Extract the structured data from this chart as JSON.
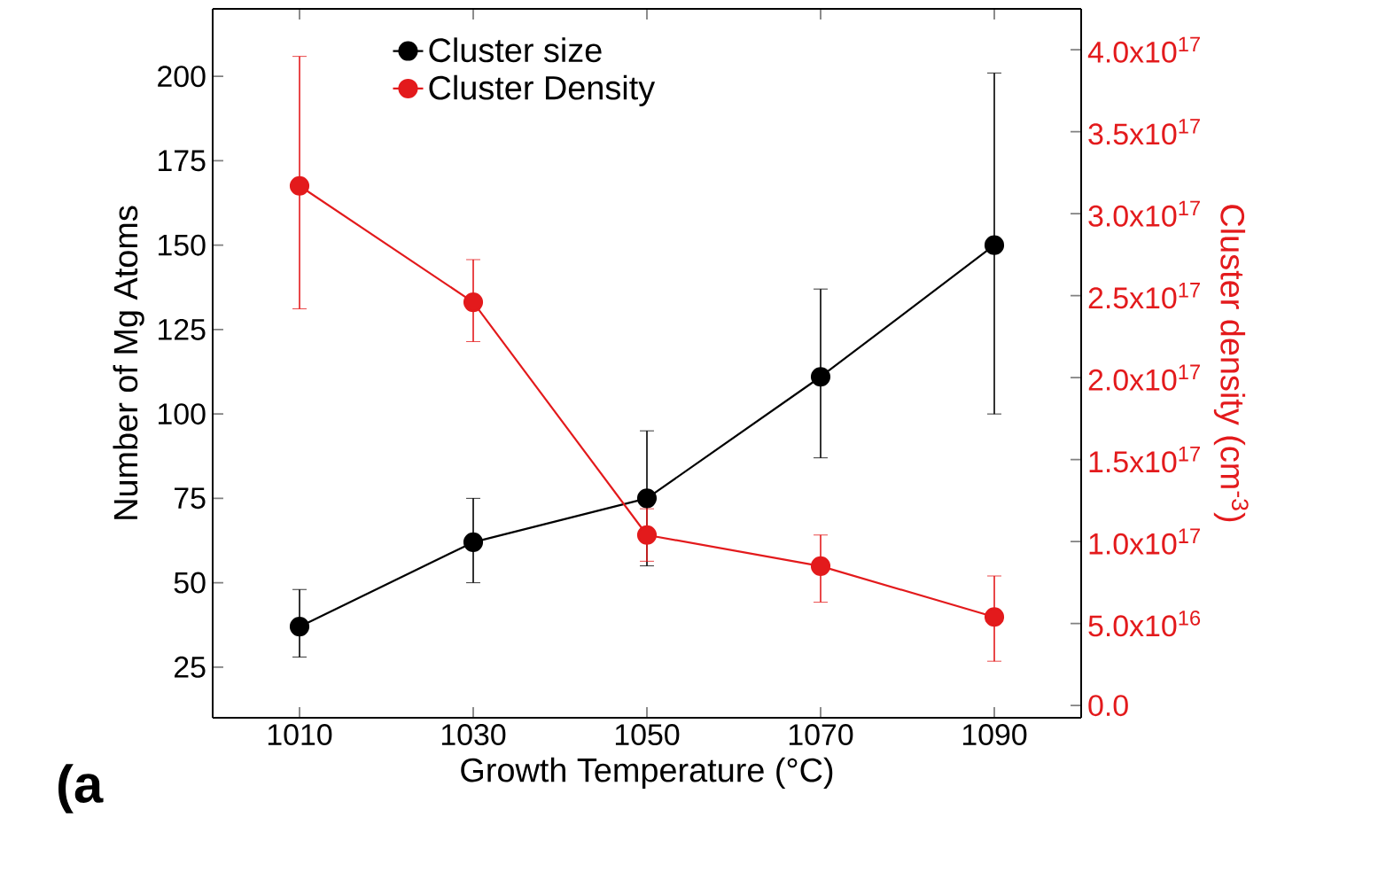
{
  "chart_data": {
    "type": "line",
    "xlabel": "Growth Temperature (°C)",
    "ylabel": "Number of Mg Atoms",
    "y2label": "Cluster density (cm$^{-3}$)",
    "annotations": [
      "(a"
    ],
    "x": [
      1010,
      1030,
      1050,
      1070,
      1090
    ],
    "series": [
      {
        "name": "Cluster size",
        "color": "#000000",
        "values": [
          37,
          62,
          75,
          111,
          150
        ],
        "errors": [
          [
            28,
            48
          ],
          [
            50,
            75
          ],
          [
            55,
            95
          ],
          [
            87,
            137
          ],
          [
            100,
            201
          ]
        ]
      },
      {
        "name": "Cluster Density",
        "color": "#e31a1c",
        "axis": "y2",
        "values": [
          3.17e+17,
          2.46e+17,
          1.04e+17,
          8.5e+16,
          5.4e+16
        ],
        "errors": [
          [
            2.42e+17,
            3.96e+17
          ],
          [
            2.22e+17,
            2.72e+17
          ],
          [
            8.8e+16,
            1.2e+17
          ],
          [
            6.3e+16,
            1.04e+17
          ],
          [
            2.7e+16,
            7.9e+16
          ]
        ]
      }
    ],
    "xlim": [
      1000,
      1100
    ],
    "xticks": [
      1010,
      1030,
      1050,
      1070,
      1090
    ],
    "ylim": [
      10,
      220
    ],
    "yticks": [
      25,
      50,
      75,
      100,
      125,
      150,
      175,
      200
    ],
    "y2lim": [
      -7500000000000000.0,
      4.25e+17
    ],
    "y2ticks": [
      {
        "value": 0,
        "label": "0.0"
      },
      {
        "value": 5e+16,
        "label": "5.0x10$^{16}$"
      },
      {
        "value": 1e+17,
        "label": "1.0x10$^{17}$"
      },
      {
        "value": 1.5e+17,
        "label": "1.5x10$^{17}$"
      },
      {
        "value": 2e+17,
        "label": "2.0x10$^{17}$"
      },
      {
        "value": 2.5e+17,
        "label": "2.5x10$^{17}$"
      },
      {
        "value": 3e+17,
        "label": "3.0x10$^{17}$"
      },
      {
        "value": 3.5e+17,
        "label": "3.5x10$^{17}$"
      },
      {
        "value": 4e+17,
        "label": "4.0x10$^{17}$"
      }
    ],
    "legend": "top",
    "marker": "circle",
    "line_style": "solid"
  }
}
